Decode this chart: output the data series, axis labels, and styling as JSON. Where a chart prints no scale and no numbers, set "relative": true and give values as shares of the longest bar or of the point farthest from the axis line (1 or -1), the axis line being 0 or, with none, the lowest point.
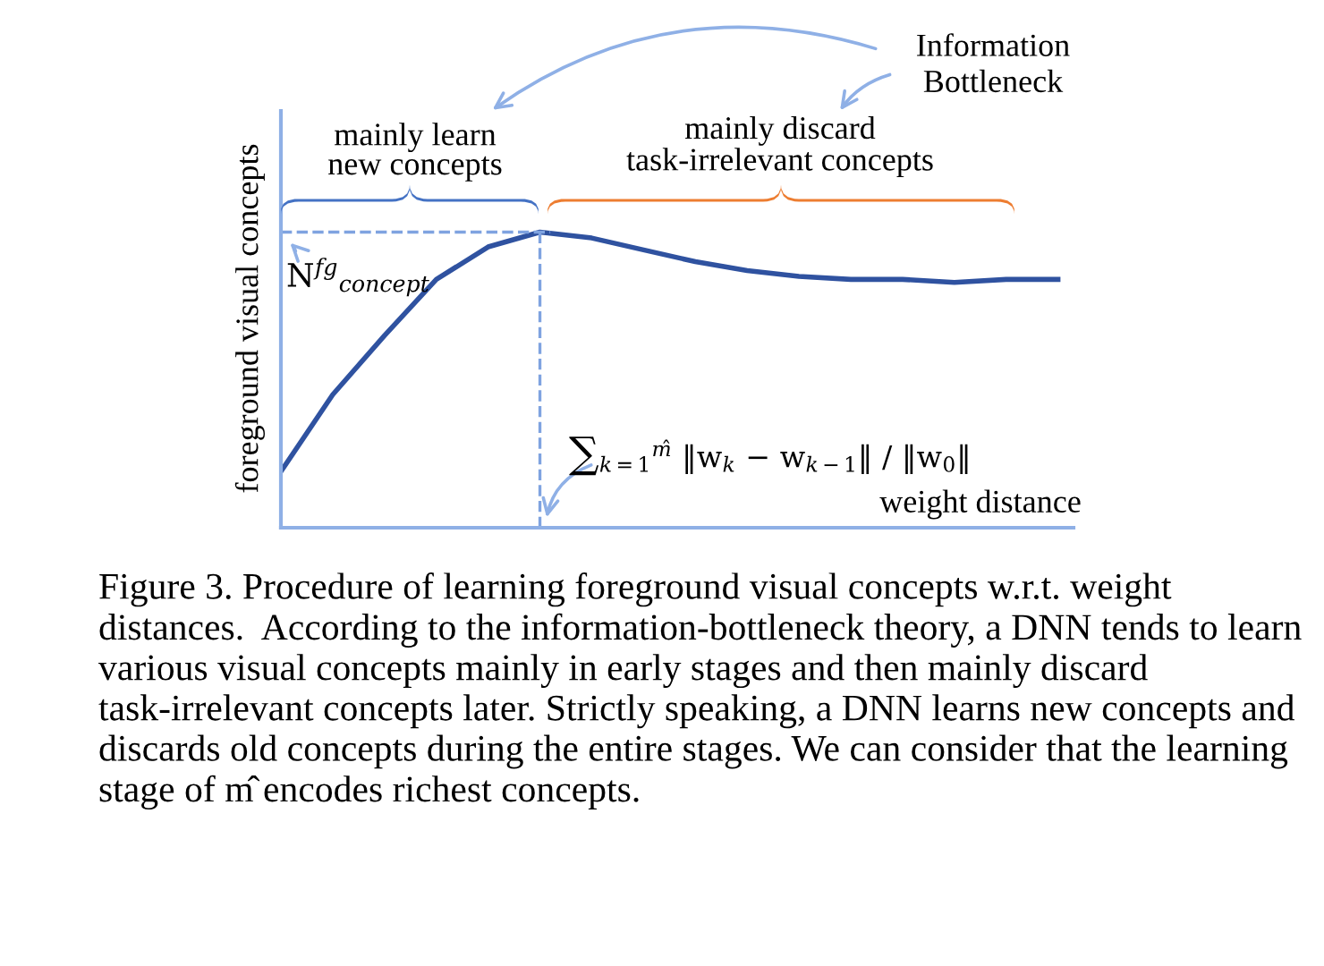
{
  "chart_data": {
    "type": "line",
    "relative": true,
    "xlabel": "weight distance",
    "ylabel": "foreground visual concepts",
    "categories": [
      null,
      null,
      null,
      null,
      null,
      null,
      null,
      null,
      null,
      null,
      null,
      null,
      null,
      null,
      null,
      null
    ],
    "series": [
      {
        "color": "#2f52a0",
        "values": [
          0.19,
          0.45,
          0.65,
          0.84,
          0.95,
          1,
          0.98,
          0.94,
          0.9,
          0.87,
          0.85,
          0.84,
          0.84,
          0.83,
          0.84,
          0.84
        ]
      }
    ],
    "ref_lines": [
      {
        "axis": "y",
        "value": 1,
        "color": "#7fa3e0",
        "line_style": "dashed"
      }
    ],
    "marker": "none",
    "line_style": "solid",
    "tick_labels": false,
    "annotations": [
      "mainly learn\nnew concepts",
      "mainly discard\ntask-irrelevant concepts",
      "Information\nBottleneck",
      "N$^{fg}$$_{concept}$",
      "∑$_{k=1}$$^{m̂}$ ‖w$_{k}$ − w$_{k−1}$‖ / ‖w$_{0}$‖",
      "Figure 3. Procedure of learning foreground visual concepts w.r.t. weight distances.  According to the information-bottleneck theory, a DNN tends to learn various visual concepts mainly in early stages and then mainly discard task-irrelevant concepts later. Strictly speaking, a DNN learns new concepts and discards old concepts during the entire stages. We can consider that the learning stage of m̂ encodes richest concepts."
    ]
  }
}
